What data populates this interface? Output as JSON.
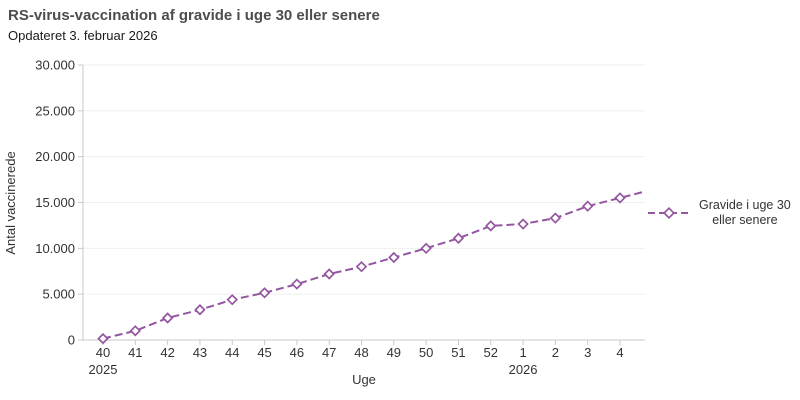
{
  "header": {
    "title": "RS-virus-vaccination af gravide i uge 30 eller senere",
    "subtitle": "Opdateret 3. februar 2026"
  },
  "legend": {
    "label_line1": "Gravide i uge 30",
    "label_line2": "eller senere",
    "position": "right"
  },
  "colors": {
    "series": "#9356a0",
    "marker_fill": "#ffffff",
    "axis_line": "#c9c9c9",
    "gridline": "#efefef",
    "tick_text": "#333333",
    "title_text": "#4d4d4d",
    "subtitle_text": "#1a1a1a"
  },
  "chart_data": {
    "type": "line",
    "title": "RS-virus-vaccination af gravide i uge 30 eller senere",
    "subtitle": "Opdateret 3. februar 2026",
    "xlabel": "Uge",
    "ylabel": "Antal vaccinerede",
    "categories": [
      "40",
      "41",
      "42",
      "43",
      "44",
      "45",
      "46",
      "47",
      "48",
      "49",
      "50",
      "51",
      "52",
      "1",
      "2",
      "3",
      "4"
    ],
    "year_labels": [
      {
        "index": 0,
        "text": "2025"
      },
      {
        "index": 13,
        "text": "2026"
      }
    ],
    "series": [
      {
        "name": "Gravide i uge 30 eller senere",
        "values": [
          150,
          1000,
          2400,
          3300,
          4400,
          5150,
          6100,
          7200,
          8000,
          9000,
          10000,
          11100,
          12450,
          12650,
          13300,
          14600,
          15500
        ],
        "color": "#9356a0",
        "line_style": "dashed",
        "marker": "diamond"
      }
    ],
    "ylim": [
      0,
      30000
    ],
    "y_ticks": [
      {
        "value": 0,
        "label": "0"
      },
      {
        "value": 5000,
        "label": "5.000"
      },
      {
        "value": 10000,
        "label": "10.000"
      },
      {
        "value": 15000,
        "label": "15.000"
      },
      {
        "value": 20000,
        "label": "20.000"
      },
      {
        "value": 25000,
        "label": "25.000"
      },
      {
        "value": 30000,
        "label": "30.000"
      }
    ],
    "grid": "horizontal",
    "legend_position": "right",
    "line_extends_past_last_point": true
  }
}
